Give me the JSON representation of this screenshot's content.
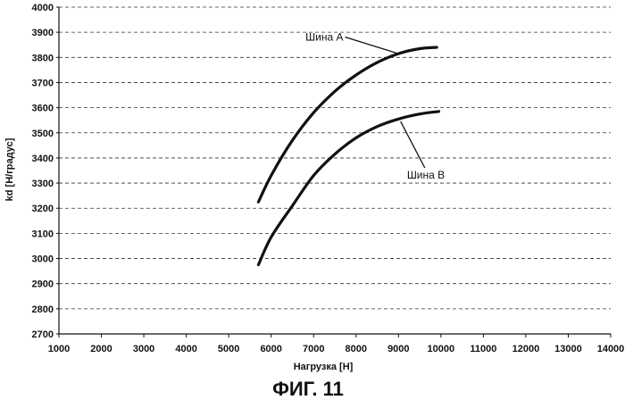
{
  "chart_data": {
    "type": "line",
    "xlabel": "Нагрузка [Н]",
    "ylabel": "kd [Н/градус]",
    "caption": "ФИГ. 11",
    "xlim": [
      1000,
      14000
    ],
    "ylim": [
      2700,
      4000
    ],
    "xticks": [
      1000,
      2000,
      3000,
      4000,
      5000,
      6000,
      7000,
      8000,
      9000,
      10000,
      11000,
      12000,
      13000,
      14000
    ],
    "yticks": [
      2700,
      2800,
      2900,
      3000,
      3100,
      3200,
      3300,
      3400,
      3500,
      3600,
      3700,
      3800,
      3900,
      4000
    ],
    "grid": "horizontal-dashed",
    "series": [
      {
        "name": "Шина A",
        "x": [
          5700,
          6000,
          6500,
          7000,
          7500,
          8000,
          8500,
          9000,
          9500,
          9900
        ],
        "y": [
          3225,
          3330,
          3470,
          3580,
          3665,
          3730,
          3780,
          3815,
          3835,
          3840
        ],
        "label_at": [
          7700,
          3867
        ],
        "pointer_to": [
          9000,
          3815
        ]
      },
      {
        "name": "Шина B",
        "x": [
          5700,
          6000,
          6500,
          7000,
          7500,
          8000,
          8500,
          9000,
          9500,
          9950
        ],
        "y": [
          2975,
          3085,
          3210,
          3330,
          3415,
          3480,
          3525,
          3555,
          3575,
          3585
        ],
        "label_at": [
          9200,
          3318
        ],
        "pointer_to": [
          9050,
          3545
        ]
      }
    ]
  }
}
